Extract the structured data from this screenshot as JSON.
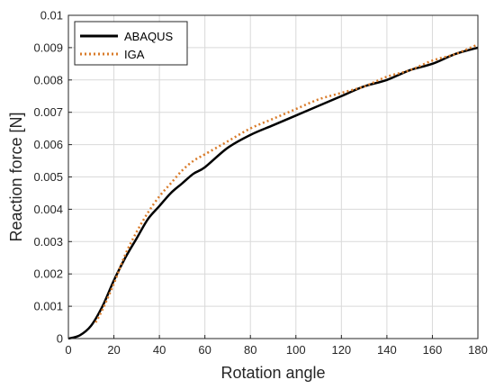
{
  "chart_data": {
    "type": "line",
    "xlabel": "Rotation angle",
    "ylabel": "Reaction force [N]",
    "xlim": [
      0,
      180
    ],
    "ylim": [
      0,
      0.01
    ],
    "x_ticks": [
      "0",
      "20",
      "40",
      "60",
      "80",
      "100",
      "120",
      "140",
      "160",
      "180"
    ],
    "y_ticks": [
      "0",
      "0.001",
      "0.002",
      "0.003",
      "0.004",
      "0.005",
      "0.006",
      "0.007",
      "0.008",
      "0.009",
      "0.01"
    ],
    "grid": true,
    "legend_position": "top-left",
    "series": [
      {
        "name": "ABAQUS",
        "color": "#000000",
        "style": "solid",
        "x": [
          0,
          5,
          10,
          15,
          20,
          25,
          30,
          35,
          40,
          45,
          50,
          55,
          60,
          70,
          80,
          90,
          100,
          110,
          120,
          130,
          140,
          150,
          160,
          170,
          180
        ],
        "y": [
          0,
          0.0001,
          0.0004,
          0.001,
          0.0018,
          0.0025,
          0.0031,
          0.0037,
          0.0041,
          0.0045,
          0.0048,
          0.0051,
          0.0053,
          0.0059,
          0.0063,
          0.0066,
          0.0069,
          0.0072,
          0.0075,
          0.0078,
          0.008,
          0.0083,
          0.0085,
          0.0088,
          0.009
        ]
      },
      {
        "name": "IGA",
        "color": "#D97B29",
        "style": "dotted",
        "x": [
          12,
          15,
          20,
          25,
          30,
          35,
          40,
          45,
          50,
          55,
          60,
          70,
          80,
          90,
          100,
          110,
          120,
          130,
          140,
          150,
          160,
          170,
          180
        ],
        "y": [
          0.0005,
          0.0009,
          0.0017,
          0.0026,
          0.0033,
          0.0039,
          0.0044,
          0.0048,
          0.0052,
          0.0055,
          0.0057,
          0.0061,
          0.0065,
          0.0068,
          0.0071,
          0.0074,
          0.0076,
          0.0078,
          0.0081,
          0.0083,
          0.0086,
          0.0088,
          0.0091
        ]
      }
    ]
  }
}
